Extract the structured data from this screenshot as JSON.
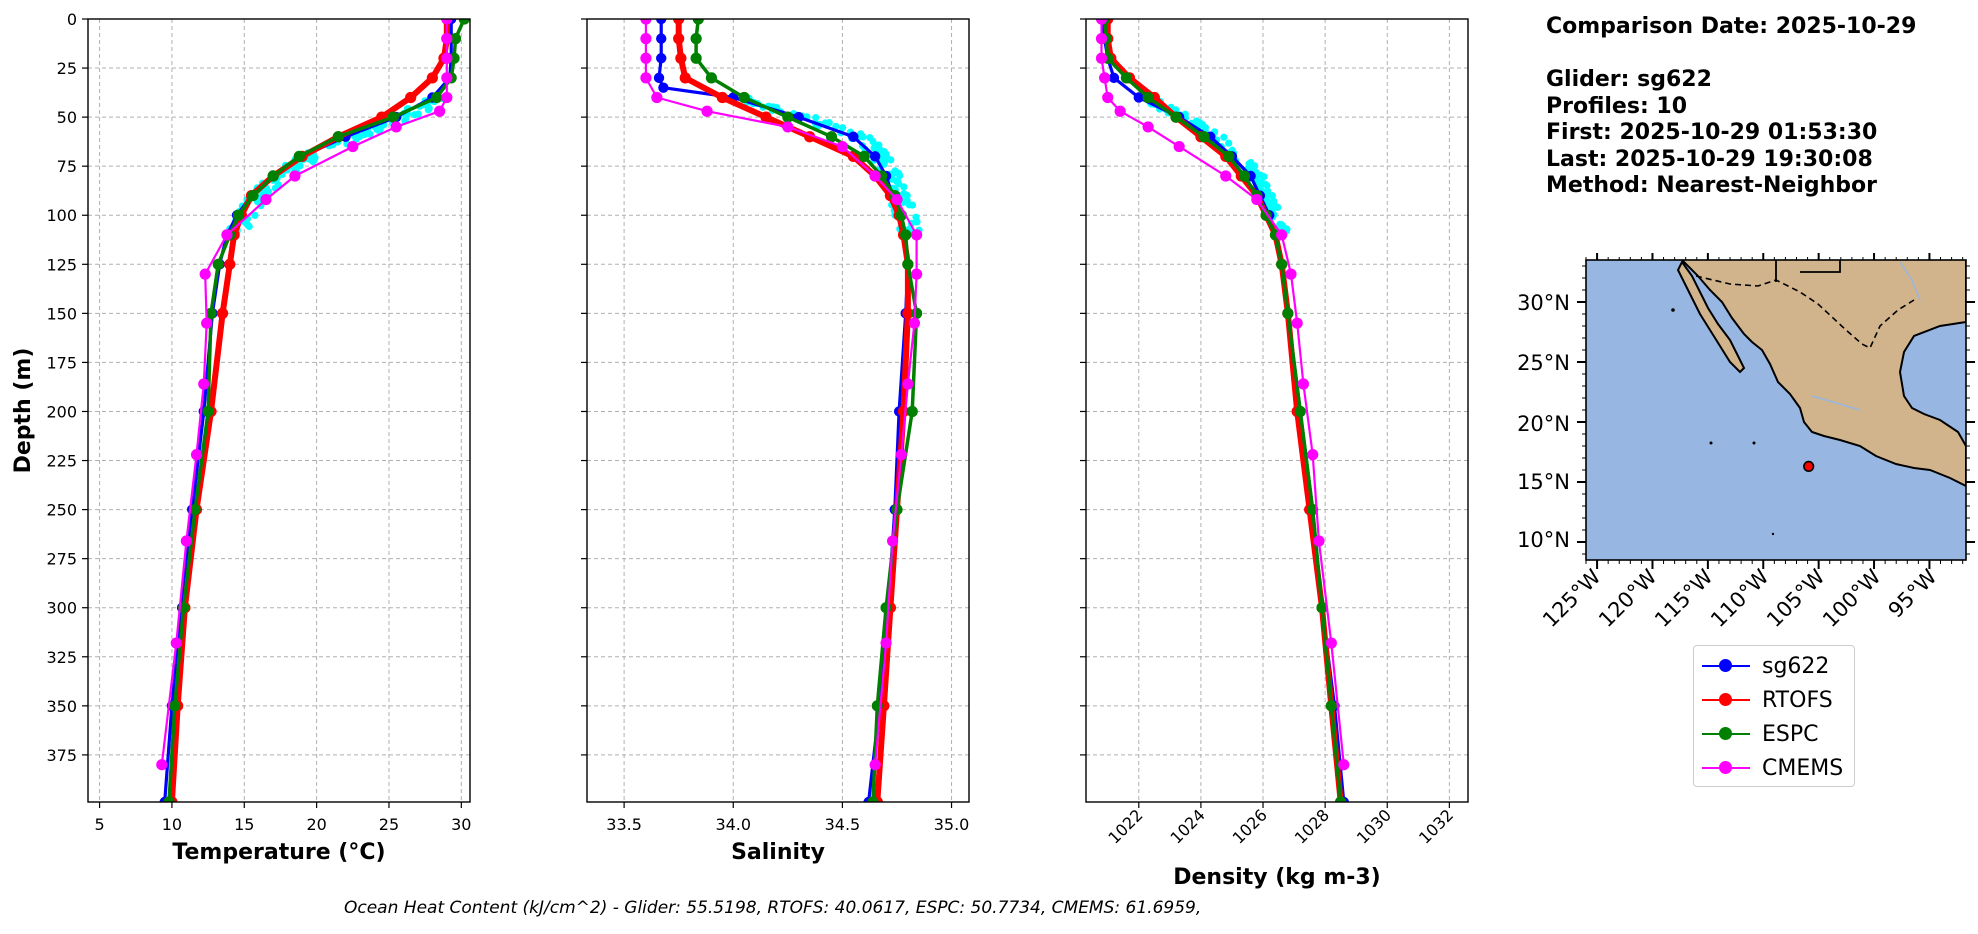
{
  "info": {
    "comparison_date": "Comparison Date: 2025-10-29",
    "glider": "Glider: sg622",
    "profiles": "Profiles: 10",
    "first": "First: 2025-10-29 01:53:30",
    "last": "Last: 2025-10-29 19:30:08",
    "method": "Method: Nearest-Neighbor"
  },
  "footer": "Ocean Heat Content (kJ/cm^2) - Glider: 55.5198,  RTOFS: 40.0617,  ESPC: 50.7734,  CMEMS: 61.6959,",
  "colors": {
    "sg622": "#0000ff",
    "RTOFS": "#ff0000",
    "ESPC": "#008000",
    "CMEMS": "#ff00ff",
    "glider_raw": "#00ffff",
    "ocean": "#97b6e1",
    "land": "#d2b48c",
    "marker": "#ff0000"
  },
  "legend": [
    {
      "name": "sg622",
      "color": "#0000ff"
    },
    {
      "name": "RTOFS",
      "color": "#ff0000"
    },
    {
      "name": "ESPC",
      "color": "#008000"
    },
    {
      "name": "CMEMS",
      "color": "#ff00ff"
    }
  ],
  "map": {
    "lat_labels": [
      "30°N",
      "25°N",
      "20°N",
      "15°N",
      "10°N"
    ],
    "lon_labels": [
      "125°W",
      "120°W",
      "115°W",
      "110°W",
      "105°W",
      "100°W",
      "95°W"
    ],
    "glider_location": {
      "lon": -105.9,
      "lat": 16.3
    }
  },
  "chart_data": [
    {
      "type": "line",
      "xlabel": "Temperature (°C)",
      "ylabel": "Depth (m)",
      "xlim": [
        4.2,
        30.6
      ],
      "ylim": [
        399,
        0
      ],
      "xticks": [
        5,
        10,
        15,
        20,
        25,
        30
      ],
      "yticks": [
        0,
        25,
        50,
        75,
        100,
        125,
        150,
        175,
        200,
        225,
        250,
        275,
        300,
        325,
        350,
        375
      ],
      "grid": true,
      "series": [
        {
          "name": "sg622",
          "depth": [
            0,
            10,
            20,
            30,
            40,
            50,
            60,
            70,
            80,
            90,
            100,
            110,
            125,
            150,
            200,
            250,
            300,
            350,
            399
          ],
          "values": [
            29.3,
            29.3,
            29.3,
            29.2,
            28.0,
            25.5,
            22.0,
            19.0,
            17.0,
            15.5,
            14.5,
            13.8,
            13.3,
            12.8,
            12.2,
            11.4,
            10.7,
            10.0,
            9.5
          ]
        },
        {
          "name": "RTOFS",
          "depth": [
            0,
            10,
            20,
            30,
            40,
            50,
            60,
            70,
            80,
            90,
            100,
            110,
            125,
            150,
            200,
            250,
            300,
            350,
            399
          ],
          "values": [
            29.0,
            29.0,
            28.8,
            28.0,
            26.5,
            24.5,
            21.5,
            19.0,
            17.0,
            15.5,
            14.8,
            14.3,
            14.0,
            13.5,
            12.7,
            11.7,
            10.9,
            10.4,
            10.0
          ]
        },
        {
          "name": "ESPC",
          "depth": [
            0,
            10,
            20,
            30,
            40,
            50,
            60,
            70,
            80,
            90,
            100,
            110,
            125,
            150,
            200,
            250,
            300,
            350,
            399
          ],
          "values": [
            30.2,
            29.6,
            29.5,
            29.3,
            28.3,
            25.3,
            21.5,
            18.8,
            17.0,
            15.6,
            14.6,
            14.0,
            13.2,
            12.7,
            12.5,
            11.6,
            10.8,
            10.2,
            9.8
          ]
        },
        {
          "name": "CMEMS",
          "depth": [
            0,
            10,
            20,
            30,
            40,
            47,
            55,
            65,
            80,
            92,
            110,
            130,
            155,
            186,
            222,
            266,
            318,
            380
          ],
          "values": [
            29.0,
            29.0,
            29.0,
            29.0,
            29.0,
            28.5,
            25.5,
            22.5,
            18.5,
            16.5,
            13.8,
            12.3,
            12.4,
            12.2,
            11.7,
            11.0,
            10.3,
            9.3
          ]
        }
      ]
    },
    {
      "type": "line",
      "xlabel": "Salinity",
      "ylabel": "",
      "xlim": [
        33.33,
        35.08
      ],
      "ylim": [
        399,
        0
      ],
      "xticks": [
        33.5,
        34.0,
        34.5,
        35.0
      ],
      "xtick_labels": [
        "33.5",
        "34.0",
        "34.5",
        "35.0"
      ],
      "yticks": [
        0,
        25,
        50,
        75,
        100,
        125,
        150,
        175,
        200,
        225,
        250,
        275,
        300,
        325,
        350,
        375
      ],
      "grid": true,
      "series": [
        {
          "name": "sg622",
          "depth": [
            0,
            10,
            20,
            30,
            35,
            40,
            50,
            60,
            70,
            80,
            90,
            100,
            110,
            125,
            150,
            200,
            250,
            300,
            350,
            399
          ],
          "values": [
            33.67,
            33.67,
            33.67,
            33.66,
            33.68,
            34.0,
            34.3,
            34.55,
            34.65,
            34.7,
            34.73,
            34.76,
            34.78,
            34.8,
            34.79,
            34.76,
            34.74,
            34.71,
            34.67,
            34.62
          ]
        },
        {
          "name": "RTOFS",
          "depth": [
            0,
            10,
            20,
            30,
            40,
            50,
            60,
            70,
            80,
            90,
            100,
            110,
            125,
            150,
            200,
            250,
            300,
            350,
            399
          ],
          "values": [
            33.75,
            33.75,
            33.76,
            33.78,
            33.95,
            34.15,
            34.35,
            34.55,
            34.65,
            34.72,
            34.76,
            34.78,
            34.8,
            34.8,
            34.78,
            34.75,
            34.72,
            34.69,
            34.66
          ]
        },
        {
          "name": "ESPC",
          "depth": [
            0,
            10,
            20,
            30,
            40,
            50,
            60,
            70,
            80,
            90,
            100,
            110,
            125,
            150,
            200,
            250,
            300,
            350,
            399
          ],
          "values": [
            33.84,
            33.83,
            33.83,
            33.9,
            34.05,
            34.25,
            34.45,
            34.6,
            34.68,
            34.74,
            34.77,
            34.79,
            34.8,
            34.84,
            34.82,
            34.75,
            34.7,
            34.66,
            34.64
          ]
        },
        {
          "name": "CMEMS",
          "depth": [
            0,
            10,
            20,
            30,
            40,
            47,
            55,
            65,
            80,
            92,
            110,
            130,
            155,
            186,
            222,
            266,
            318,
            380
          ],
          "values": [
            33.6,
            33.6,
            33.6,
            33.6,
            33.65,
            33.88,
            34.25,
            34.5,
            34.65,
            34.75,
            34.84,
            34.84,
            34.83,
            34.8,
            34.77,
            34.73,
            34.7,
            34.65
          ]
        }
      ]
    },
    {
      "type": "line",
      "xlabel": "Density (kg m-3)",
      "ylabel": "",
      "xlim": [
        1020.3,
        1032.6
      ],
      "ylim": [
        399,
        0
      ],
      "xticks": [
        1022,
        1024,
        1026,
        1028,
        1030,
        1032
      ],
      "yticks": [
        0,
        25,
        50,
        75,
        100,
        125,
        150,
        175,
        200,
        225,
        250,
        275,
        300,
        325,
        350,
        375
      ],
      "grid": true,
      "series": [
        {
          "name": "sg622",
          "depth": [
            0,
            10,
            20,
            30,
            40,
            50,
            60,
            70,
            80,
            90,
            100,
            110,
            125,
            150,
            200,
            250,
            300,
            350,
            399
          ],
          "values": [
            1020.8,
            1020.9,
            1021.0,
            1021.2,
            1022.0,
            1023.3,
            1024.3,
            1025.0,
            1025.6,
            1025.9,
            1026.2,
            1026.4,
            1026.6,
            1026.8,
            1027.2,
            1027.6,
            1027.9,
            1028.3,
            1028.6
          ]
        },
        {
          "name": "RTOFS",
          "depth": [
            0,
            10,
            20,
            30,
            40,
            50,
            60,
            70,
            80,
            90,
            100,
            110,
            125,
            150,
            200,
            250,
            300,
            350,
            399
          ],
          "values": [
            1021.0,
            1021.0,
            1021.1,
            1021.7,
            1022.5,
            1023.2,
            1024.0,
            1024.8,
            1025.3,
            1025.8,
            1026.1,
            1026.4,
            1026.6,
            1026.8,
            1027.1,
            1027.5,
            1027.9,
            1028.2,
            1028.5
          ]
        },
        {
          "name": "ESPC",
          "depth": [
            0,
            10,
            20,
            30,
            40,
            50,
            60,
            70,
            80,
            90,
            100,
            110,
            125,
            150,
            200,
            250,
            300,
            350,
            399
          ],
          "values": [
            1020.9,
            1020.95,
            1021.0,
            1021.6,
            1022.3,
            1023.2,
            1024.1,
            1024.9,
            1025.4,
            1025.8,
            1026.1,
            1026.4,
            1026.6,
            1026.8,
            1027.2,
            1027.6,
            1027.9,
            1028.2,
            1028.5
          ]
        },
        {
          "name": "CMEMS",
          "depth": [
            0,
            10,
            20,
            30,
            40,
            47,
            55,
            65,
            80,
            92,
            110,
            130,
            155,
            186,
            222,
            266,
            318,
            380
          ],
          "values": [
            1020.8,
            1020.8,
            1020.8,
            1020.9,
            1021.0,
            1021.4,
            1022.3,
            1023.3,
            1024.8,
            1025.8,
            1026.6,
            1026.9,
            1027.1,
            1027.3,
            1027.6,
            1027.8,
            1028.2,
            1028.6
          ]
        }
      ]
    }
  ]
}
